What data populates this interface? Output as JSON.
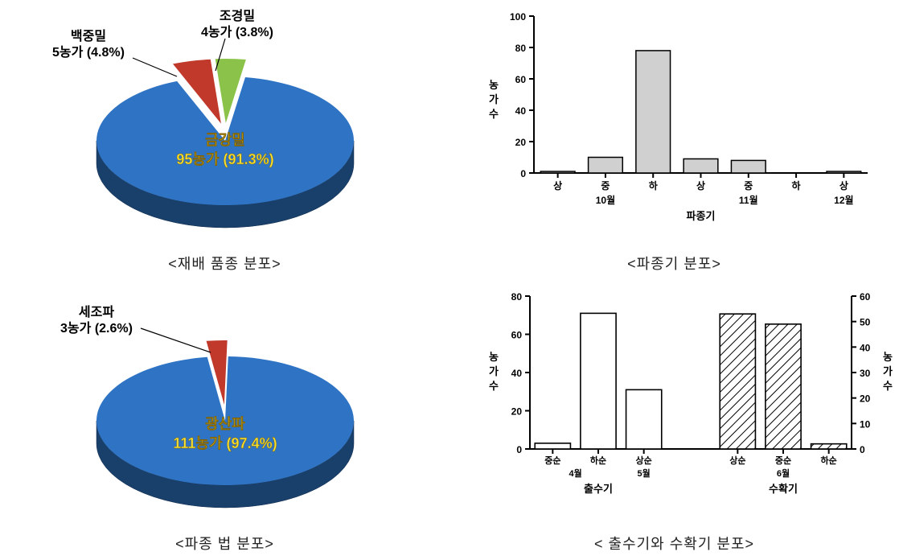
{
  "pie1": {
    "type": "pie-3d",
    "caption": "<재배 품종 분포>",
    "slices": [
      {
        "name": "금강밀",
        "label1": "금강밀",
        "label2": "95농가 (91.3%)",
        "pct": 91.3,
        "color": "#2f74c4"
      },
      {
        "name": "백중밀",
        "label1": "백중밀",
        "label2": "5농가 (4.8%)",
        "pct": 4.8,
        "color": "#c0392b",
        "exploded": true
      },
      {
        "name": "조경밀",
        "label1": "조경밀",
        "label2": "4농가 (3.8%)",
        "pct": 3.8,
        "color": "#8bc34a",
        "exploded": true
      }
    ],
    "center_label_color": "#f5e033",
    "leader_color": "#000000",
    "label_fontsize": 16,
    "label_weight": "bold"
  },
  "pie2": {
    "type": "pie-3d",
    "caption": "<파종 법 분포>",
    "slices": [
      {
        "name": "광산파",
        "label1": "광산파",
        "label2": "111농가 (97.4%)",
        "pct": 97.4,
        "color": "#2f74c4"
      },
      {
        "name": "세조파",
        "label1": "세조파",
        "label2": "3농가 (2.6%)",
        "pct": 2.6,
        "color": "#c0392b",
        "exploded": true
      }
    ],
    "center_label_color": "#f5e033",
    "leader_color": "#000000",
    "label_fontsize": 16,
    "label_weight": "bold"
  },
  "bar1": {
    "type": "bar",
    "caption": "<파종기 분포>",
    "ylabel": "농가수",
    "xlabel": "파종기",
    "ylim": [
      0,
      100
    ],
    "ytick_step": 20,
    "categories_top": [
      "상",
      "중",
      "하",
      "상",
      "중",
      "하",
      "상"
    ],
    "categories_bottom": [
      "10월",
      "11월",
      "12월"
    ],
    "category_group_spans": [
      [
        0,
        2
      ],
      [
        3,
        5
      ],
      [
        6,
        6
      ]
    ],
    "values": [
      1,
      10,
      78,
      9,
      8,
      0,
      1
    ],
    "bar_color": "#d0d0d0",
    "bar_border": "#000000",
    "axis_color": "#000000",
    "label_fontsize": 13,
    "tick_fontsize": 12,
    "bar_width": 0.72
  },
  "bar2": {
    "type": "bar-dual-axis",
    "caption": "< 출수기와 수확기 분포>",
    "ylabel_left": "농가수",
    "ylabel_right": "농가수",
    "ylim_left": [
      0,
      80
    ],
    "ytick_step_left": 20,
    "ylim_right": [
      0,
      60
    ],
    "ytick_step_right": 10,
    "left_group": {
      "title": "출수기",
      "cats_top": [
        "중순",
        "하순",
        "상순"
      ],
      "cats_bottom": [
        "4월",
        "5월"
      ],
      "cat_group_spans": [
        [
          0,
          1
        ],
        [
          2,
          2
        ]
      ],
      "values": [
        3,
        71,
        31
      ],
      "fill": "#ffffff",
      "border": "#000000",
      "pattern": "none"
    },
    "right_group": {
      "title": "수확기",
      "cats_top": [
        "상순",
        "중순",
        "하순"
      ],
      "cats_bottom": [
        "6월"
      ],
      "cat_group_spans": [
        [
          0,
          2
        ]
      ],
      "values": [
        53,
        49,
        2
      ],
      "fill": "#ffffff",
      "border": "#000000",
      "pattern": "diagonal"
    },
    "axis_color": "#000000",
    "label_fontsize": 13,
    "tick_fontsize": 12,
    "bar_width": 0.78
  }
}
